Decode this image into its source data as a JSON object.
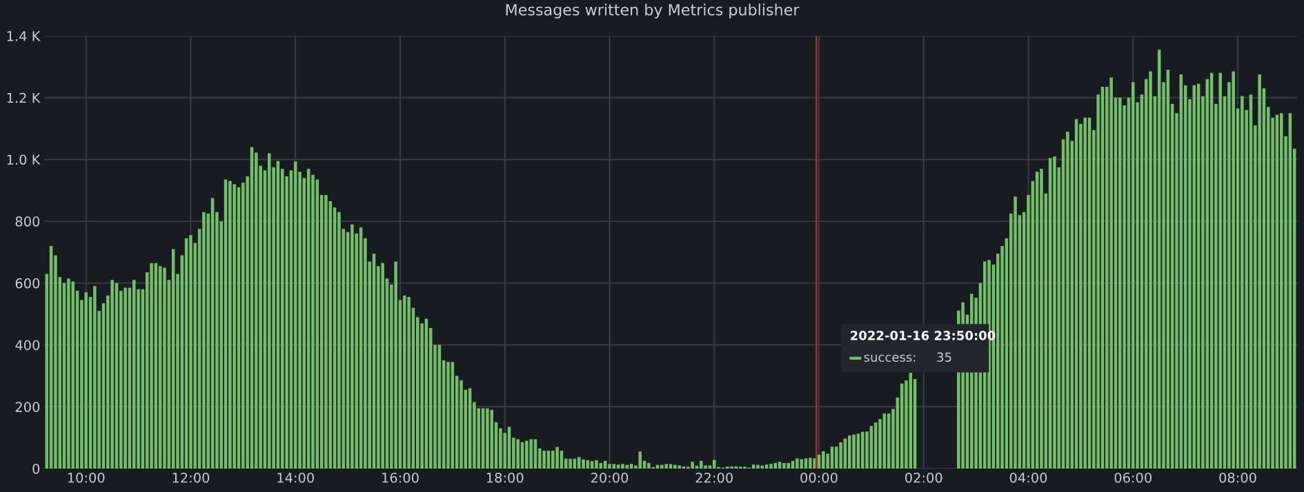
{
  "chart_data": {
    "type": "bar",
    "title": "Messages written by Metrics publisher",
    "x": [
      "2022-01-16T09:15",
      "2022-01-16T09:20",
      "2022-01-16T09:25",
      "2022-01-16T09:30",
      "2022-01-16T09:35",
      "2022-01-16T09:40",
      "2022-01-16T09:45",
      "2022-01-16T09:50",
      "2022-01-16T09:55",
      "2022-01-16T10:00",
      "2022-01-16T10:05",
      "2022-01-16T10:10",
      "2022-01-16T10:15",
      "2022-01-16T10:20",
      "2022-01-16T10:25",
      "2022-01-16T10:30",
      "2022-01-16T10:35",
      "2022-01-16T10:40",
      "2022-01-16T10:45",
      "2022-01-16T10:50",
      "2022-01-16T10:55",
      "2022-01-16T11:00",
      "2022-01-16T11:05",
      "2022-01-16T11:10",
      "2022-01-16T11:15",
      "2022-01-16T11:20",
      "2022-01-16T11:25",
      "2022-01-16T11:30",
      "2022-01-16T11:35",
      "2022-01-16T11:40",
      "2022-01-16T11:45",
      "2022-01-16T11:50",
      "2022-01-16T11:55",
      "2022-01-16T12:00",
      "2022-01-16T12:05",
      "2022-01-16T12:10",
      "2022-01-16T12:15",
      "2022-01-16T12:20",
      "2022-01-16T12:25",
      "2022-01-16T12:30",
      "2022-01-16T12:35",
      "2022-01-16T12:40",
      "2022-01-16T12:45",
      "2022-01-16T12:50",
      "2022-01-16T12:55",
      "2022-01-16T13:00",
      "2022-01-16T13:05",
      "2022-01-16T13:10",
      "2022-01-16T13:15",
      "2022-01-16T13:20",
      "2022-01-16T13:25",
      "2022-01-16T13:30",
      "2022-01-16T13:35",
      "2022-01-16T13:40",
      "2022-01-16T13:45",
      "2022-01-16T13:50",
      "2022-01-16T13:55",
      "2022-01-16T14:00",
      "2022-01-16T14:05",
      "2022-01-16T14:10",
      "2022-01-16T14:15",
      "2022-01-16T14:20",
      "2022-01-16T14:25",
      "2022-01-16T14:30",
      "2022-01-16T14:35",
      "2022-01-16T14:40",
      "2022-01-16T14:45",
      "2022-01-16T14:50",
      "2022-01-16T14:55",
      "2022-01-16T15:00",
      "2022-01-16T15:05",
      "2022-01-16T15:10",
      "2022-01-16T15:15",
      "2022-01-16T15:20",
      "2022-01-16T15:25",
      "2022-01-16T15:30",
      "2022-01-16T15:35",
      "2022-01-16T15:40",
      "2022-01-16T15:45",
      "2022-01-16T15:50",
      "2022-01-16T15:55",
      "2022-01-16T16:00",
      "2022-01-16T16:05",
      "2022-01-16T16:10",
      "2022-01-16T16:15",
      "2022-01-16T16:20",
      "2022-01-16T16:25",
      "2022-01-16T16:30",
      "2022-01-16T16:35",
      "2022-01-16T16:40",
      "2022-01-16T16:45",
      "2022-01-16T16:50",
      "2022-01-16T16:55",
      "2022-01-16T17:00",
      "2022-01-16T17:05",
      "2022-01-16T17:10",
      "2022-01-16T17:15",
      "2022-01-16T17:20",
      "2022-01-16T17:25",
      "2022-01-16T17:30",
      "2022-01-16T17:35",
      "2022-01-16T17:40",
      "2022-01-16T17:45",
      "2022-01-16T17:50",
      "2022-01-16T17:55",
      "2022-01-16T18:00",
      "2022-01-16T18:05",
      "2022-01-16T18:10",
      "2022-01-16T18:15",
      "2022-01-16T18:20",
      "2022-01-16T18:25",
      "2022-01-16T18:30",
      "2022-01-16T18:35",
      "2022-01-16T18:40",
      "2022-01-16T18:45",
      "2022-01-16T18:50",
      "2022-01-16T18:55",
      "2022-01-16T19:00",
      "2022-01-16T19:05",
      "2022-01-16T19:10",
      "2022-01-16T19:15",
      "2022-01-16T19:20",
      "2022-01-16T19:25",
      "2022-01-16T19:30",
      "2022-01-16T19:35",
      "2022-01-16T19:40",
      "2022-01-16T19:45",
      "2022-01-16T19:50",
      "2022-01-16T19:55",
      "2022-01-16T20:00",
      "2022-01-16T20:05",
      "2022-01-16T20:10",
      "2022-01-16T20:15",
      "2022-01-16T20:20",
      "2022-01-16T20:25",
      "2022-01-16T20:30",
      "2022-01-16T20:35",
      "2022-01-16T20:40",
      "2022-01-16T20:45",
      "2022-01-16T20:50",
      "2022-01-16T20:55",
      "2022-01-16T21:00",
      "2022-01-16T21:05",
      "2022-01-16T21:10",
      "2022-01-16T21:15",
      "2022-01-16T21:20",
      "2022-01-16T21:25",
      "2022-01-16T21:30",
      "2022-01-16T21:35",
      "2022-01-16T21:40",
      "2022-01-16T21:45",
      "2022-01-16T21:50",
      "2022-01-16T21:55",
      "2022-01-16T22:00",
      "2022-01-16T22:05",
      "2022-01-16T22:10",
      "2022-01-16T22:15",
      "2022-01-16T22:20",
      "2022-01-16T22:25",
      "2022-01-16T22:30",
      "2022-01-16T22:35",
      "2022-01-16T22:40",
      "2022-01-16T22:45",
      "2022-01-16T22:50",
      "2022-01-16T22:55",
      "2022-01-16T23:00",
      "2022-01-16T23:05",
      "2022-01-16T23:10",
      "2022-01-16T23:15",
      "2022-01-16T23:20",
      "2022-01-16T23:25",
      "2022-01-16T23:30",
      "2022-01-16T23:35",
      "2022-01-16T23:40",
      "2022-01-16T23:45",
      "2022-01-16T23:50",
      "2022-01-16T23:55",
      "2022-01-17T00:00",
      "2022-01-17T00:05",
      "2022-01-17T00:10",
      "2022-01-17T00:15",
      "2022-01-17T00:20",
      "2022-01-17T00:25",
      "2022-01-17T00:30",
      "2022-01-17T00:35",
      "2022-01-17T00:40",
      "2022-01-17T00:45",
      "2022-01-17T00:50",
      "2022-01-17T00:55",
      "2022-01-17T01:00",
      "2022-01-17T01:05",
      "2022-01-17T01:10",
      "2022-01-17T01:15",
      "2022-01-17T01:20",
      "2022-01-17T01:25",
      "2022-01-17T01:30",
      "2022-01-17T01:35",
      "2022-01-17T01:40",
      "2022-01-17T01:45",
      "2022-01-17T01:50",
      "2022-01-17T01:55",
      "2022-01-17T02:00",
      "2022-01-17T02:05",
      "2022-01-17T02:10",
      "2022-01-17T02:15",
      "2022-01-17T02:20",
      "2022-01-17T02:25",
      "2022-01-17T02:30",
      "2022-01-17T02:35",
      "2022-01-17T02:40",
      "2022-01-17T02:45",
      "2022-01-17T02:50",
      "2022-01-17T02:55",
      "2022-01-17T03:00",
      "2022-01-17T03:05",
      "2022-01-17T03:10",
      "2022-01-17T03:15",
      "2022-01-17T03:20",
      "2022-01-17T03:25",
      "2022-01-17T03:30",
      "2022-01-17T03:35",
      "2022-01-17T03:40",
      "2022-01-17T03:45",
      "2022-01-17T03:50",
      "2022-01-17T03:55",
      "2022-01-17T04:00",
      "2022-01-17T04:05",
      "2022-01-17T04:10",
      "2022-01-17T04:15",
      "2022-01-17T04:20",
      "2022-01-17T04:25",
      "2022-01-17T04:30",
      "2022-01-17T04:35",
      "2022-01-17T04:40",
      "2022-01-17T04:45",
      "2022-01-17T04:50",
      "2022-01-17T04:55",
      "2022-01-17T05:00",
      "2022-01-17T05:05",
      "2022-01-17T05:10",
      "2022-01-17T05:15",
      "2022-01-17T05:20",
      "2022-01-17T05:25",
      "2022-01-17T05:30",
      "2022-01-17T05:35",
      "2022-01-17T05:40",
      "2022-01-17T05:45",
      "2022-01-17T05:50",
      "2022-01-17T05:55",
      "2022-01-17T06:00",
      "2022-01-17T06:05",
      "2022-01-17T06:10",
      "2022-01-17T06:15",
      "2022-01-17T06:20",
      "2022-01-17T06:25",
      "2022-01-17T06:30",
      "2022-01-17T06:35",
      "2022-01-17T06:40",
      "2022-01-17T06:45",
      "2022-01-17T06:50",
      "2022-01-17T06:55",
      "2022-01-17T07:00",
      "2022-01-17T07:05",
      "2022-01-17T07:10",
      "2022-01-17T07:15",
      "2022-01-17T07:20",
      "2022-01-17T07:25",
      "2022-01-17T07:30",
      "2022-01-17T07:35",
      "2022-01-17T07:40",
      "2022-01-17T07:45",
      "2022-01-17T07:50",
      "2022-01-17T07:55",
      "2022-01-17T08:00",
      "2022-01-17T08:05",
      "2022-01-17T08:10",
      "2022-01-17T08:15",
      "2022-01-17T08:20",
      "2022-01-17T08:25",
      "2022-01-17T08:30",
      "2022-01-17T08:35",
      "2022-01-17T08:40",
      "2022-01-17T08:45",
      "2022-01-17T08:50",
      "2022-01-17T08:55",
      "2022-01-17T09:00",
      "2022-01-17T09:05"
    ],
    "series": [
      {
        "color": "#73bf69",
        "values": [
          630,
          720,
          690,
          620,
          600,
          615,
          605,
          575,
          545,
          570,
          555,
          590,
          510,
          535,
          560,
          610,
          600,
          575,
          585,
          585,
          610,
          580,
          580,
          635,
          665,
          665,
          655,
          650,
          610,
          710,
          630,
          690,
          745,
          755,
          730,
          775,
          830,
          825,
          875,
          830,
          800,
          935,
          930,
          920,
          910,
          925,
          945,
          1040,
          1022,
          980,
          965,
          1020,
          975,
          995,
          970,
          945,
          965,
          993,
          960,
          940,
          970,
          950,
          935,
          885,
          885,
          865,
          845,
          830,
          775,
          765,
          790,
          760,
          780,
          745,
          670,
          695,
          655,
          665,
          615,
          595,
          670,
          545,
          560,
          555,
          520,
          490,
          470,
          485,
          455,
          400,
          400,
          350,
          345,
          345,
          300,
          285,
          255,
          260,
          215,
          195,
          195,
          195,
          190,
          150,
          130,
          115,
          135,
          100,
          95,
          85,
          90,
          95,
          95,
          65,
          58,
          58,
          58,
          70,
          58,
          32,
          32,
          32,
          37,
          30,
          27,
          24,
          27,
          18,
          25,
          15,
          15,
          13,
          15,
          12,
          15,
          10,
          55,
          25,
          18,
          5,
          12,
          12,
          15,
          15,
          12,
          10,
          7,
          6,
          22,
          9,
          25,
          10,
          10,
          28,
          5,
          3,
          7,
          7,
          7,
          6,
          6,
          3,
          13,
          12,
          10,
          13,
          15,
          18,
          22,
          18,
          18,
          25,
          33,
          30,
          33,
          35,
          33,
          45,
          56,
          48,
          71,
          71,
          85,
          97,
          107,
          110,
          113,
          119,
          120,
          138,
          149,
          160,
          178,
          178,
          193,
          230,
          275,
          285,
          310,
          290,
          null,
          null,
          null,
          null,
          null,
          null,
          null,
          null,
          null,
          511,
          538,
          498,
          565,
          553,
          600,
          670,
          675,
          660,
          695,
          720,
          745,
          825,
          880,
          820,
          830,
          885,
          930,
          960,
          970,
          890,
          1005,
          1010,
          975,
          1065,
          1090,
          1060,
          1130,
          1115,
          1135,
          1135,
          1095,
          1210,
          1235,
          1235,
          1265,
          1200,
          1200,
          1175,
          1200,
          1250,
          1185,
          1210,
          1260,
          1285,
          1205,
          1355,
          1250,
          1290,
          1180,
          1150,
          1275,
          1240,
          1195,
          1240,
          1245,
          1205,
          1260,
          1280,
          1180,
          1280,
          1205,
          1250,
          1285,
          1165,
          1205,
          1160,
          1210,
          1110,
          1275,
          1230,
          1170,
          1135,
          1145,
          1150,
          1075,
          1150,
          1035
        ]
      }
    ],
    "xlim": [
      "2022-01-16T09:12",
      "2022-01-17T09:08"
    ],
    "xticks": [
      {
        "value": "2022-01-16T10:00",
        "label": "10:00"
      },
      {
        "value": "2022-01-16T12:00",
        "label": "12:00"
      },
      {
        "value": "2022-01-16T14:00",
        "label": "14:00"
      },
      {
        "value": "2022-01-16T16:00",
        "label": "16:00"
      },
      {
        "value": "2022-01-16T18:00",
        "label": "18:00"
      },
      {
        "value": "2022-01-16T20:00",
        "label": "20:00"
      },
      {
        "value": "2022-01-16T22:00",
        "label": "22:00"
      },
      {
        "value": "2022-01-17T00:00",
        "label": "00:00"
      },
      {
        "value": "2022-01-17T02:00",
        "label": "02:00"
      },
      {
        "value": "2022-01-17T04:00",
        "label": "04:00"
      },
      {
        "value": "2022-01-17T06:00",
        "label": "06:00"
      },
      {
        "value": "2022-01-17T08:00",
        "label": "08:00"
      }
    ],
    "ylim": [
      0,
      1400
    ],
    "yticks": [
      0,
      200,
      400,
      600,
      800,
      {
        "value": 1000,
        "label": "1.0 K"
      },
      {
        "value": 1200,
        "label": "1.2 K"
      },
      {
        "value": 1400,
        "label": "1.4 K"
      }
    ],
    "grid": true,
    "ref_lines": [
      {
        "axis": "x",
        "value": "2022-01-16T23:57",
        "label": null,
        "color": "#b02a2a"
      }
    ],
    "annotations": [
      "2022-01-16 23:50:00",
      "success:     35"
    ]
  }
}
